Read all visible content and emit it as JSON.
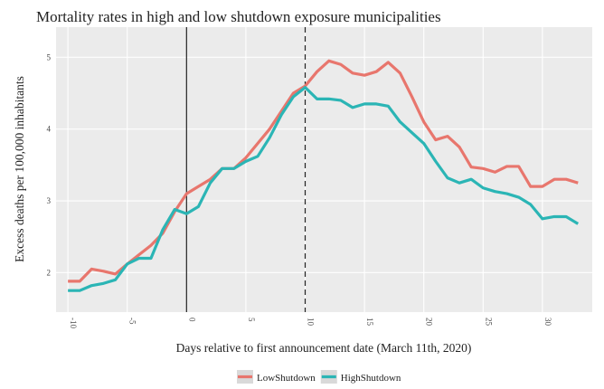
{
  "chart_data": {
    "type": "line",
    "title": "Mortality rates in high and low shutdown exposure municipalities",
    "x_label": "Days relative to first announcement date (March 11th, 2020)",
    "y_label": "Excess deaths per 100,000 inhabitants",
    "x": [
      -10,
      -9,
      -8,
      -7,
      -6,
      -5,
      -4,
      -3,
      -2,
      -1,
      0,
      1,
      2,
      3,
      4,
      5,
      6,
      7,
      8,
      9,
      10,
      11,
      12,
      13,
      14,
      15,
      16,
      17,
      18,
      19,
      20,
      21,
      22,
      23,
      24,
      25,
      26,
      27,
      28,
      29,
      30,
      31,
      32,
      33
    ],
    "series": [
      {
        "name": "LowShutdown",
        "color": "#e8766d",
        "values": [
          1.88,
          1.88,
          2.05,
          2.02,
          1.98,
          2.12,
          2.25,
          2.38,
          2.55,
          2.85,
          3.1,
          3.2,
          3.3,
          3.45,
          3.45,
          3.6,
          3.8,
          4.0,
          4.25,
          4.5,
          4.6,
          4.8,
          4.95,
          4.9,
          4.78,
          4.75,
          4.8,
          4.93,
          4.78,
          4.45,
          4.1,
          3.85,
          3.9,
          3.75,
          3.47,
          3.45,
          3.4,
          3.48,
          3.48,
          3.2,
          3.2,
          3.3,
          3.3,
          3.25
        ]
      },
      {
        "name": "HighShutdown",
        "color": "#2bb5b5",
        "values": [
          1.75,
          1.75,
          1.82,
          1.85,
          1.9,
          2.12,
          2.2,
          2.2,
          2.6,
          2.88,
          2.82,
          2.92,
          3.25,
          3.45,
          3.45,
          3.55,
          3.62,
          3.88,
          4.2,
          4.45,
          4.58,
          4.42,
          4.42,
          4.4,
          4.3,
          4.35,
          4.35,
          4.32,
          4.1,
          3.95,
          3.8,
          3.55,
          3.32,
          3.25,
          3.3,
          3.18,
          3.13,
          3.1,
          3.05,
          2.95,
          2.75,
          2.78,
          2.78,
          2.68
        ]
      }
    ],
    "vlines": [
      {
        "x": 0,
        "style": "solid"
      },
      {
        "x": 10,
        "style": "dashed"
      }
    ],
    "xlim": [
      -11,
      34.2
    ],
    "xticks": [
      -10,
      -5,
      0,
      5,
      10,
      15,
      20,
      25,
      30
    ],
    "ylim": [
      1.45,
      5.42
    ],
    "yticks": [
      2,
      3,
      4,
      5
    ],
    "grid": true,
    "legend": "bottom"
  }
}
